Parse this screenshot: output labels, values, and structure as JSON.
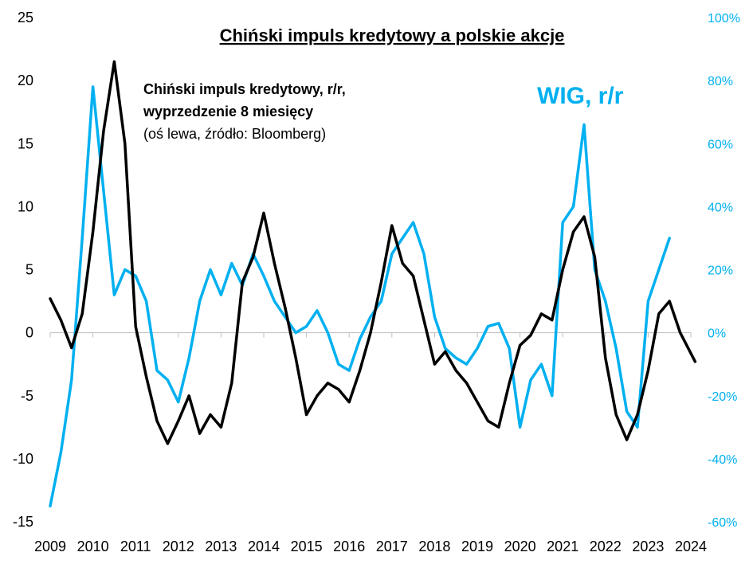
{
  "chart_data": {
    "type": "line",
    "title": "Chiński impuls kredytowy a polskie akcje",
    "annotations": {
      "credit_line1": "Chiński impuls kredytowy, r/r,",
      "credit_line2": "wyprzedzenie 8 miesięcy",
      "credit_line3": "(oś lewa, źródło: Bloomberg)",
      "wig": "WIG, r/r"
    },
    "x_ticks": [
      "2009",
      "2010",
      "2011",
      "2012",
      "2013",
      "2014",
      "2015",
      "2016",
      "2017",
      "2018",
      "2019",
      "2020",
      "2021",
      "2022",
      "2023",
      "2024"
    ],
    "left_axis": {
      "ylim": [
        -15,
        25
      ],
      "ticks": [
        "-15",
        "-10",
        "-5",
        "0",
        "5",
        "10",
        "15",
        "20",
        "25"
      ]
    },
    "right_axis": {
      "ylim": [
        -0.6,
        1.0
      ],
      "ticks": [
        "-60%",
        "-40%",
        "-20%",
        "0%",
        "20%",
        "40%",
        "60%",
        "80%",
        "100%"
      ]
    },
    "series": [
      {
        "name": "Chiński impuls kredytowy, r/r",
        "axis": "left",
        "color": "#000000",
        "x": [
          2009.0,
          2009.25,
          2009.5,
          2009.75,
          2010.0,
          2010.25,
          2010.5,
          2010.75,
          2011.0,
          2011.25,
          2011.5,
          2011.75,
          2012.0,
          2012.25,
          2012.5,
          2012.75,
          2013.0,
          2013.25,
          2013.5,
          2013.75,
          2014.0,
          2014.25,
          2014.5,
          2014.75,
          2015.0,
          2015.25,
          2015.5,
          2015.75,
          2016.0,
          2016.25,
          2016.5,
          2016.75,
          2017.0,
          2017.25,
          2017.5,
          2017.75,
          2018.0,
          2018.25,
          2018.5,
          2018.75,
          2019.0,
          2019.25,
          2019.5,
          2019.75,
          2020.0,
          2020.25,
          2020.5,
          2020.75,
          2021.0,
          2021.25,
          2021.5,
          2021.75,
          2022.0,
          2022.25,
          2022.5,
          2022.75,
          2023.0,
          2023.25,
          2023.5,
          2023.75,
          2024.1
        ],
        "values": [
          2.7,
          1.0,
          -1.2,
          1.5,
          8.0,
          16.0,
          21.5,
          15.0,
          0.5,
          -3.5,
          -7.0,
          -8.8,
          -7.0,
          -5.0,
          -8.0,
          -6.5,
          -7.5,
          -4.0,
          4.0,
          6.0,
          9.5,
          5.5,
          2.0,
          -2.0,
          -6.5,
          -5.0,
          -4.0,
          -4.5,
          -5.5,
          -3.0,
          0.0,
          4.0,
          8.5,
          5.5,
          4.5,
          1.0,
          -2.5,
          -1.5,
          -3.0,
          -4.0,
          -5.5,
          -7.0,
          -7.5,
          -4.0,
          -1.0,
          -0.2,
          1.5,
          1.0,
          5.0,
          8.0,
          9.2,
          6.0,
          -2.0,
          -6.5,
          -8.5,
          -6.5,
          -3.0,
          1.5,
          2.5,
          0.0,
          -2.3
        ]
      },
      {
        "name": "WIG, r/r",
        "axis": "right",
        "color": "#00b0f0",
        "x": [
          2009.0,
          2009.25,
          2009.5,
          2009.75,
          2010.0,
          2010.25,
          2010.5,
          2010.75,
          2011.0,
          2011.25,
          2011.5,
          2011.75,
          2012.0,
          2012.25,
          2012.5,
          2012.75,
          2013.0,
          2013.25,
          2013.5,
          2013.75,
          2014.0,
          2014.25,
          2014.5,
          2014.75,
          2015.0,
          2015.25,
          2015.5,
          2015.75,
          2016.0,
          2016.25,
          2016.5,
          2016.75,
          2017.0,
          2017.25,
          2017.5,
          2017.75,
          2018.0,
          2018.25,
          2018.5,
          2018.75,
          2019.0,
          2019.25,
          2019.5,
          2019.75,
          2020.0,
          2020.25,
          2020.5,
          2020.75,
          2021.0,
          2021.25,
          2021.5,
          2021.75,
          2022.0,
          2022.25,
          2022.5,
          2022.75,
          2023.0,
          2023.25,
          2023.5
        ],
        "values": [
          -0.55,
          -0.38,
          -0.15,
          0.3,
          0.78,
          0.45,
          0.12,
          0.2,
          0.18,
          0.1,
          -0.12,
          -0.15,
          -0.22,
          -0.08,
          0.1,
          0.2,
          0.12,
          0.22,
          0.15,
          0.25,
          0.18,
          0.1,
          0.05,
          0.0,
          0.02,
          0.07,
          0.0,
          -0.1,
          -0.12,
          -0.02,
          0.05,
          0.1,
          0.25,
          0.3,
          0.35,
          0.25,
          0.05,
          -0.05,
          -0.08,
          -0.1,
          -0.05,
          0.02,
          0.03,
          -0.05,
          -0.3,
          -0.15,
          -0.1,
          -0.2,
          0.35,
          0.4,
          0.66,
          0.2,
          0.1,
          -0.05,
          -0.25,
          -0.3,
          0.1,
          0.2,
          0.3
        ]
      }
    ]
  }
}
